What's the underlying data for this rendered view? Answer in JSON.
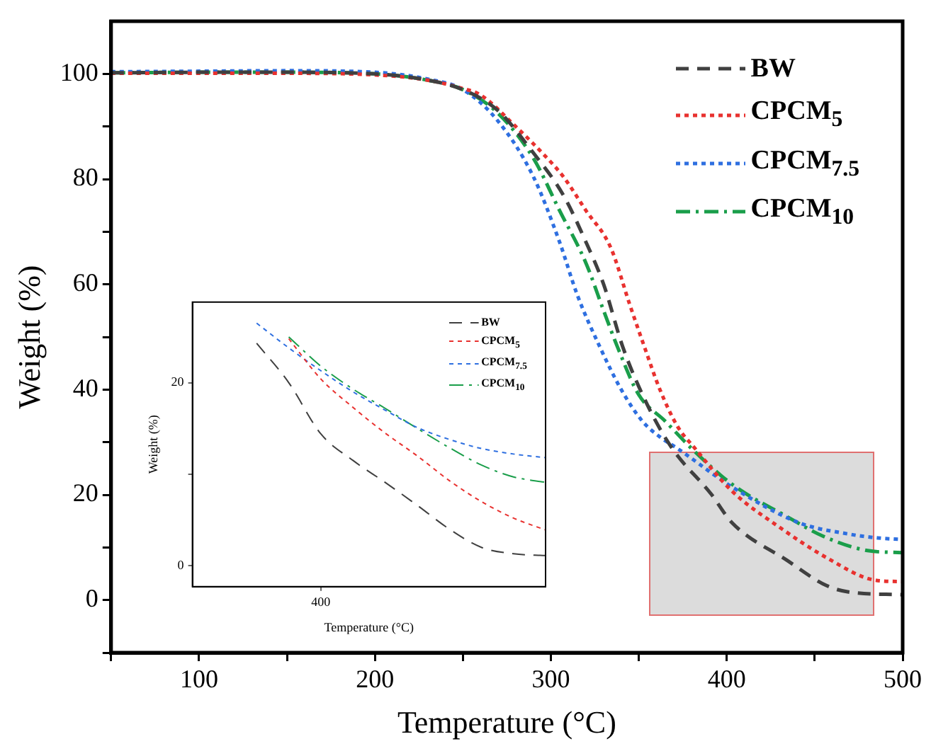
{
  "chart_data": [
    {
      "type": "line",
      "xlabel": "Temperature (°C)",
      "ylabel": "Weight (%)",
      "xlim": [
        50,
        500
      ],
      "xticks": [
        {
          "value": 50,
          "label": null
        },
        100,
        {
          "value": 150,
          "label": null
        },
        200,
        {
          "value": 250,
          "label": null
        },
        300,
        {
          "value": 350,
          "label": null
        },
        400,
        {
          "value": 450,
          "label": null
        },
        500
      ],
      "ylim": [
        -10,
        110
      ],
      "yticks": [
        {
          "value": -10,
          "label": null
        },
        0,
        {
          "value": 10,
          "label": null
        },
        20,
        {
          "value": 30,
          "label": null
        },
        40,
        {
          "value": 50,
          "label": null
        },
        60,
        {
          "value": 70,
          "label": null
        },
        80,
        {
          "value": 90,
          "label": null
        },
        100
      ],
      "grid": false,
      "legend": "top right",
      "series": [
        {
          "name": "BW",
          "color": "#404040",
          "line_style": "dashed",
          "x": [
            50,
            100,
            150,
            200,
            230,
            250,
            270,
            290,
            307,
            320,
            330,
            341,
            355,
            369,
            391,
            403,
            434,
            457,
            470,
            500
          ],
          "values": [
            100.2,
            100.3,
            100.3,
            100,
            98.8,
            97,
            93,
            85,
            77,
            68,
            60,
            48,
            37,
            28.8,
            20.2,
            14.7,
            7.6,
            2.7,
            1.5,
            1
          ]
        },
        {
          "name": "CPCM$_{5}$",
          "color": "#e8312f",
          "line_style": "dotted",
          "x": [
            50,
            100,
            150,
            200,
            230,
            250,
            260,
            280,
            295,
            307,
            320,
            334,
            345,
            353,
            362,
            372,
            382,
            403,
            431,
            457,
            484,
            500
          ],
          "values": [
            100.1,
            100.1,
            100.1,
            99.8,
            98.8,
            97.2,
            96,
            90,
            85,
            80.5,
            74,
            67,
            56,
            48.3,
            40,
            33,
            28.8,
            20.7,
            13.6,
            8,
            3.8,
            3.5
          ]
        },
        {
          "name": "CPCM$_{7.5}$",
          "color": "#2e6fe0",
          "line_style": "dotted",
          "x": [
            50,
            100,
            150,
            200,
            230,
            250,
            270,
            290,
            305,
            315,
            328,
            340,
            352,
            362,
            372,
            403,
            441,
            470,
            486,
            500
          ],
          "values": [
            100.4,
            100.5,
            100.6,
            100.3,
            99,
            97,
            91,
            80.5,
            68,
            58,
            48,
            40,
            34,
            31,
            28.8,
            21.5,
            14.7,
            12.5,
            11.8,
            11.5
          ]
        },
        {
          "name": "CPCM$_{10}$",
          "color": "#1a9e4a",
          "line_style": "dashdot",
          "x": [
            50,
            100,
            150,
            200,
            230,
            250,
            270,
            290,
            305,
            320,
            330,
            338,
            350,
            365,
            380,
            403,
            434,
            455,
            480,
            500
          ],
          "values": [
            100.2,
            100.3,
            100.3,
            100,
            98.8,
            97,
            92.5,
            84,
            74,
            64,
            55,
            48,
            39,
            34,
            28.8,
            22,
            15.9,
            12.1,
            9.4,
            9
          ]
        }
      ]
    },
    {
      "type": "line",
      "xlabel": "Temperature (°C)",
      "ylabel": "Weight (%)",
      "categories": [
        null,
        null,
        null,
        null,
        "400",
        null,
        null,
        null,
        null,
        null,
        null,
        null
      ],
      "ylim": [
        -2.3,
        28.8
      ],
      "yticks": [
        0,
        {
          "value": 10,
          "label": null
        },
        20
      ],
      "grid": false,
      "legend": "top right",
      "series": [
        {
          "name": "BW",
          "color": "#404040",
          "line_style": "dashed",
          "values": [
            null,
            null,
            24.3,
            20,
            14.4,
            11.5,
            9.1,
            6.6,
            4,
            2,
            1.3,
            1.1
          ]
        },
        {
          "name": "CPCM$_{5}$",
          "color": "#e8312f",
          "line_style": "dotted",
          "values": [
            null,
            null,
            null,
            24.8,
            20.4,
            17.3,
            14.5,
            12,
            9.3,
            7,
            5.2,
            3.9
          ]
        },
        {
          "name": "CPCM$_{7.5}$",
          "color": "#2e6fe0",
          "line_style": "dotted",
          "values": [
            null,
            null,
            26.5,
            23.8,
            21.3,
            19,
            17,
            15.1,
            13.8,
            12.8,
            12.2,
            11.8
          ]
        },
        {
          "name": "CPCM$_{10}$",
          "color": "#1a9e4a",
          "line_style": "dashdot",
          "values": [
            null,
            null,
            null,
            25,
            21.8,
            19.3,
            17.2,
            15,
            12.9,
            11,
            9.7,
            9.1
          ]
        }
      ]
    }
  ]
}
